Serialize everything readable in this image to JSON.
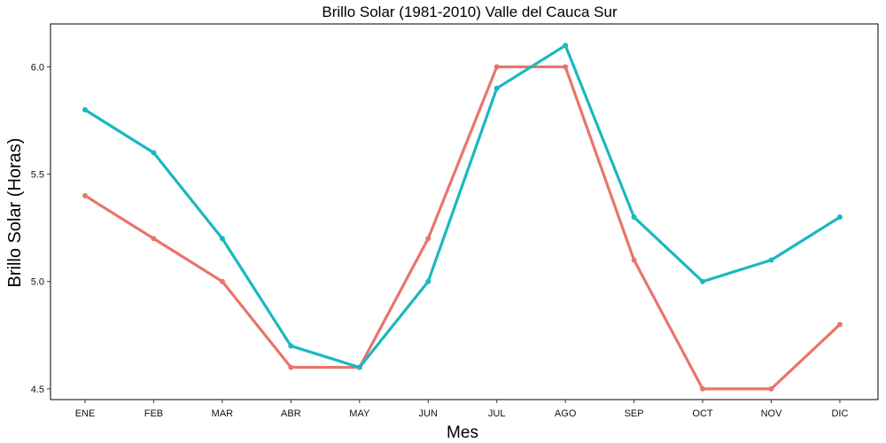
{
  "chart_data": {
    "type": "line",
    "title": "Brillo Solar (1981-2010)  Valle del Cauca Sur",
    "xlabel": "Mes",
    "ylabel": "Brillo Solar (Horas)",
    "categories": [
      "ENE",
      "FEB",
      "MAR",
      "ABR",
      "MAY",
      "JUN",
      "JUL",
      "AGO",
      "SEP",
      "OCT",
      "NOV",
      "DIC"
    ],
    "yticks": [
      "4.5",
      "5.0",
      "5.5",
      "6.0"
    ],
    "ylim": [
      4.45,
      6.2
    ],
    "grid": false,
    "legend": "none",
    "series": [
      {
        "color": "#e8756c",
        "values": [
          5.4,
          5.2,
          5.0,
          4.6,
          4.6,
          5.2,
          6.0,
          6.0,
          5.1,
          4.5,
          4.5,
          4.8
        ]
      },
      {
        "color": "#1ab8c0",
        "values": [
          5.8,
          5.6,
          5.2,
          4.7,
          4.6,
          5.0,
          5.9,
          6.1,
          5.3,
          5.0,
          5.1,
          5.3
        ]
      }
    ]
  }
}
